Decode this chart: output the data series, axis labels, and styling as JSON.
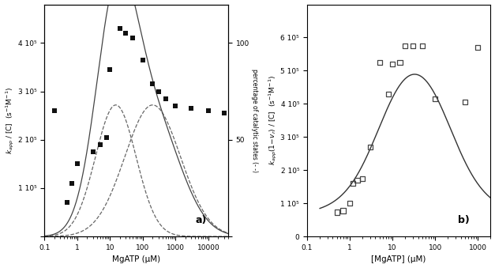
{
  "panel_a": {
    "scatter_x": [
      0.2,
      0.5,
      0.7,
      1.0,
      3,
      5,
      8,
      10,
      20,
      30,
      50,
      100,
      200,
      300,
      500,
      1000,
      3000,
      10000,
      30000
    ],
    "scatter_y": [
      260000.0,
      70000.0,
      110000.0,
      150000.0,
      175000.0,
      190000.0,
      205000.0,
      345000.0,
      430000.0,
      420000.0,
      410000.0,
      365000.0,
      315000.0,
      300000.0,
      285000.0,
      270000.0,
      265000.0,
      260000.0,
      255000.0
    ],
    "ylim_left": [
      0,
      480000.0
    ],
    "ylim_right": [
      0,
      120
    ],
    "yticks_left": [
      0,
      100000.0,
      200000.0,
      300000.0,
      400000.0
    ],
    "ytick_labels_left": [
      "",
      "1 10^5",
      "2 10^5",
      "3 10^5",
      "4 10^5"
    ],
    "yticks_right": [
      0,
      50,
      100
    ],
    "xlabel": "MgATP (μM)",
    "ylabel_left": "k_app / [C]  (s⁻¹M⁻¹)",
    "ylabel_right": "percentage of catalytic states (- -)",
    "xlim": [
      0.1,
      40000
    ],
    "label": "a)"
  },
  "panel_b": {
    "scatter_x": [
      0.5,
      0.7,
      1.0,
      1.2,
      1.5,
      2.0,
      3.0,
      5.0,
      8.0,
      10.0,
      15.0,
      20.0,
      30.0,
      50.0,
      100.0,
      500.0,
      1000.0
    ],
    "scatter_y": [
      73000.0,
      78000.0,
      100000.0,
      160000.0,
      170000.0,
      175000.0,
      270000.0,
      525000.0,
      430000.0,
      520000.0,
      525000.0,
      575000.0,
      575000.0,
      575000.0,
      415000.0,
      405000.0,
      570000.0
    ],
    "ylim": [
      0,
      700000.0
    ],
    "yticks": [
      0,
      100000.0,
      200000.0,
      300000.0,
      400000.0,
      500000.0,
      600000.0
    ],
    "xlabel": "[MgATP] (μM)",
    "ylabel": "k_app(1-v_r) / [C]  (s⁻¹M⁻¹)",
    "xlim": [
      0.2,
      2000
    ],
    "label": "b)"
  },
  "background_color": "#ffffff",
  "line_color": "#444444"
}
